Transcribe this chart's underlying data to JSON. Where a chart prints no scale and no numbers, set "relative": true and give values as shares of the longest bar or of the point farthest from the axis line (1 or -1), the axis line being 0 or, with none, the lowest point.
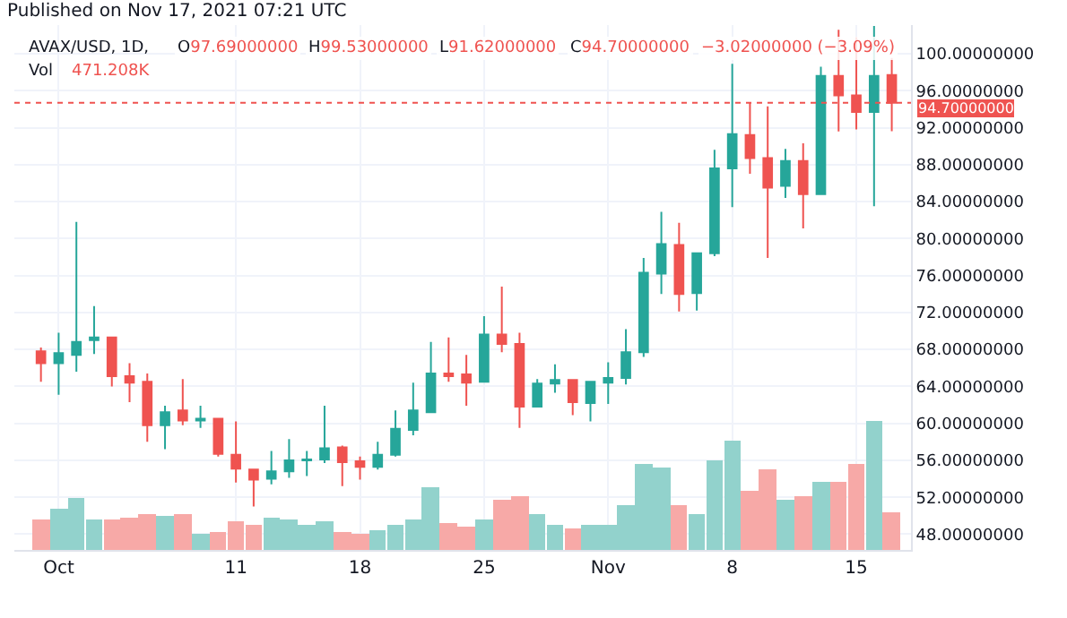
{
  "chart_data": [
    {
      "type": "candlestick",
      "title": "AVAX/USD, 1D,",
      "subtitle": "Published on Nov 17, 2021 07:21 UTC",
      "annotations": [
        "O97.69000000",
        "H99.53000000",
        "L91.62000000",
        "C94.70000000",
        "−3.02000000 (−3.09%)"
      ],
      "x": [
        "2021-09-30",
        "2021-10-01",
        "2021-10-02",
        "2021-10-03",
        "2021-10-04",
        "2021-10-05",
        "2021-10-06",
        "2021-10-07",
        "2021-10-08",
        "2021-10-09",
        "2021-10-10",
        "2021-10-11",
        "2021-10-12",
        "2021-10-13",
        "2021-10-14",
        "2021-10-15",
        "2021-10-16",
        "2021-10-17",
        "2021-10-18",
        "2021-10-19",
        "2021-10-20",
        "2021-10-21",
        "2021-10-22",
        "2021-10-23",
        "2021-10-24",
        "2021-10-25",
        "2021-10-26",
        "2021-10-27",
        "2021-10-28",
        "2021-10-29",
        "2021-10-30",
        "2021-10-31",
        "2021-11-01",
        "2021-11-02",
        "2021-11-03",
        "2021-11-04",
        "2021-11-05",
        "2021-11-06",
        "2021-11-07",
        "2021-11-08",
        "2021-11-09",
        "2021-11-10",
        "2021-11-11",
        "2021-11-12",
        "2021-11-13",
        "2021-11-14",
        "2021-11-15",
        "2021-11-16",
        "2021-11-17"
      ],
      "ohlc": [
        [
          67.8,
          68.2,
          64.5,
          66.5
        ],
        [
          66.5,
          69.8,
          63.1,
          67.6
        ],
        [
          67.4,
          81.8,
          65.6,
          68.8
        ],
        [
          69.0,
          72.7,
          67.5,
          69.3
        ],
        [
          69.3,
          69.3,
          64.0,
          65.1
        ],
        [
          65.1,
          66.5,
          62.3,
          64.4
        ],
        [
          64.5,
          65.4,
          58.0,
          59.8
        ],
        [
          59.8,
          61.9,
          57.2,
          61.2
        ],
        [
          61.4,
          64.8,
          59.8,
          60.3
        ],
        [
          60.3,
          61.9,
          59.5,
          60.5
        ],
        [
          60.5,
          60.5,
          56.4,
          56.7
        ],
        [
          56.6,
          60.2,
          53.6,
          55.1
        ],
        [
          55.0,
          55.0,
          51.0,
          53.9
        ],
        [
          54.0,
          57.0,
          53.4,
          54.8
        ],
        [
          54.8,
          58.3,
          54.1,
          56.0
        ],
        [
          56.0,
          57.0,
          54.3,
          56.1
        ],
        [
          56.1,
          61.9,
          55.7,
          57.3
        ],
        [
          57.4,
          57.6,
          53.2,
          55.8
        ],
        [
          55.9,
          56.4,
          53.9,
          55.3
        ],
        [
          55.3,
          58.0,
          55.0,
          56.6
        ],
        [
          56.6,
          61.4,
          56.4,
          59.4
        ],
        [
          59.3,
          64.4,
          58.7,
          61.4
        ],
        [
          61.2,
          68.8,
          61.2,
          65.4
        ],
        [
          65.4,
          69.3,
          64.5,
          65.1
        ],
        [
          65.3,
          67.4,
          61.9,
          64.4
        ],
        [
          64.5,
          71.6,
          64.4,
          69.6
        ],
        [
          69.6,
          74.8,
          67.7,
          68.6
        ],
        [
          68.6,
          69.8,
          59.5,
          61.8
        ],
        [
          61.8,
          64.8,
          61.8,
          64.3
        ],
        [
          64.3,
          66.4,
          63.3,
          64.7
        ],
        [
          64.7,
          64.7,
          60.9,
          62.3
        ],
        [
          62.2,
          64.6,
          60.2,
          64.5
        ],
        [
          64.4,
          66.6,
          62.1,
          64.9
        ],
        [
          64.9,
          70.2,
          64.2,
          67.7
        ],
        [
          67.7,
          77.9,
          67.2,
          76.3
        ],
        [
          76.2,
          82.9,
          74.0,
          79.4
        ],
        [
          79.3,
          81.7,
          72.1,
          74.0
        ],
        [
          74.1,
          78.4,
          72.2,
          78.4
        ],
        [
          78.4,
          89.6,
          78.1,
          87.6
        ],
        [
          87.6,
          98.9,
          83.4,
          91.3
        ],
        [
          91.2,
          94.7,
          87.0,
          88.7
        ],
        [
          88.7,
          94.3,
          77.9,
          85.5
        ],
        [
          85.7,
          89.7,
          84.4,
          88.4
        ],
        [
          88.4,
          90.3,
          81.1,
          84.8
        ],
        [
          84.8,
          98.6,
          84.7,
          97.6
        ],
        [
          97.6,
          102.6,
          91.6,
          95.5
        ],
        [
          95.5,
          101.8,
          91.8,
          93.7
        ],
        [
          93.7,
          103.0,
          83.5,
          97.6
        ],
        [
          97.69,
          99.53,
          91.62,
          94.7
        ]
      ],
      "colors": [
        "#ef5350",
        "#26a69a",
        "#26a69a",
        "#26a69a",
        "#ef5350",
        "#ef5350",
        "#ef5350",
        "#26a69a",
        "#ef5350",
        "#26a69a",
        "#ef5350",
        "#ef5350",
        "#ef5350",
        "#26a69a",
        "#26a69a",
        "#26a69a",
        "#26a69a",
        "#ef5350",
        "#ef5350",
        "#26a69a",
        "#26a69a",
        "#26a69a",
        "#26a69a",
        "#ef5350",
        "#ef5350",
        "#26a69a",
        "#ef5350",
        "#ef5350",
        "#26a69a",
        "#26a69a",
        "#ef5350",
        "#26a69a",
        "#26a69a",
        "#26a69a",
        "#26a69a",
        "#26a69a",
        "#ef5350",
        "#26a69a",
        "#26a69a",
        "#26a69a",
        "#ef5350",
        "#ef5350",
        "#26a69a",
        "#ef5350",
        "#26a69a",
        "#ef5350",
        "#ef5350",
        "#26a69a",
        "#ef5350"
      ],
      "xlim": [
        "2021-09-28T12:00",
        "2021-11-18T02:00"
      ],
      "xticks": [
        {
          "value": "2021-10-01",
          "label": "Oct"
        },
        {
          "value": "2021-10-11",
          "label": "11"
        },
        {
          "value": "2021-10-18",
          "label": "18"
        },
        {
          "value": "2021-10-25",
          "label": "25"
        },
        {
          "value": "2021-11-01",
          "label": "Nov"
        },
        {
          "value": "2021-11-08",
          "label": "8"
        },
        {
          "value": "2021-11-15",
          "label": "15"
        }
      ],
      "ylim": [
        46.3,
        103.1
      ],
      "yticks": [
        {
          "value": 48,
          "label": "48.00000000"
        },
        {
          "value": 52,
          "label": "52.00000000"
        },
        {
          "value": 56,
          "label": "56.00000000"
        },
        {
          "value": 60,
          "label": "60.00000000"
        },
        {
          "value": 64,
          "label": "64.00000000"
        },
        {
          "value": 68,
          "label": "68.00000000"
        },
        {
          "value": 72,
          "label": "72.00000000"
        },
        {
          "value": 76,
          "label": "76.00000000"
        },
        {
          "value": 80,
          "label": "80.00000000"
        },
        {
          "value": 84,
          "label": "84.00000000"
        },
        {
          "value": 88,
          "label": "88.00000000"
        },
        {
          "value": 92,
          "label": "92.00000000"
        },
        {
          "value": 96,
          "label": "96.00000000"
        },
        {
          "value": 100,
          "label": "100.00000000"
        }
      ],
      "ref_lines": [
        {
          "axis": "y",
          "value": 94.7,
          "label": "94.70000000",
          "color": "#ef5350",
          "line_style": "dotted"
        }
      ],
      "grid": true
    },
    {
      "type": "bar",
      "relative": true,
      "title": "Vol",
      "annotations": [
        "471.208K"
      ],
      "categories": [
        null,
        null,
        null,
        null,
        null,
        null,
        null,
        null,
        null,
        null,
        null,
        null,
        null,
        null,
        null,
        null,
        null,
        null,
        null,
        null,
        null,
        null,
        null,
        null,
        null,
        null,
        null,
        null,
        null,
        null,
        null,
        null,
        null,
        null,
        null,
        null,
        null,
        null,
        null,
        null,
        null,
        null,
        null,
        null,
        null,
        null,
        null,
        null,
        null
      ],
      "values": [
        0.24,
        0.32,
        0.4,
        0.24,
        0.24,
        0.25,
        0.28,
        0.26,
        0.28,
        0.12,
        0.14,
        0.22,
        0.19,
        0.25,
        0.23,
        0.2,
        0.22,
        0.14,
        0.12,
        0.15,
        0.2,
        0.23,
        0.48,
        0.21,
        0.18,
        0.23,
        0.39,
        0.42,
        0.28,
        0.2,
        0.16,
        0.2,
        0.2,
        0.35,
        0.67,
        0.63,
        0.34,
        0.27,
        0.69,
        0.84,
        0.45,
        0.62,
        0.39,
        0.41,
        0.52,
        0.52,
        0.66,
        1.0,
        0.29
      ],
      "colors": [
        "#f7a9a7",
        "#92d2cc",
        "#92d2cc",
        "#92d2cc",
        "#f7a9a7",
        "#f7a9a7",
        "#f7a9a7",
        "#92d2cc",
        "#f7a9a7",
        "#92d2cc",
        "#f7a9a7",
        "#f7a9a7",
        "#f7a9a7",
        "#92d2cc",
        "#92d2cc",
        "#92d2cc",
        "#92d2cc",
        "#f7a9a7",
        "#f7a9a7",
        "#92d2cc",
        "#92d2cc",
        "#92d2cc",
        "#92d2cc",
        "#f7a9a7",
        "#f7a9a7",
        "#92d2cc",
        "#f7a9a7",
        "#f7a9a7",
        "#92d2cc",
        "#92d2cc",
        "#f7a9a7",
        "#92d2cc",
        "#92d2cc",
        "#92d2cc",
        "#92d2cc",
        "#92d2cc",
        "#f7a9a7",
        "#92d2cc",
        "#92d2cc",
        "#92d2cc",
        "#f7a9a7",
        "#f7a9a7",
        "#92d2cc",
        "#f7a9a7",
        "#92d2cc",
        "#f7a9a7",
        "#f7a9a7",
        "#92d2cc",
        "#f7a9a7"
      ]
    }
  ]
}
